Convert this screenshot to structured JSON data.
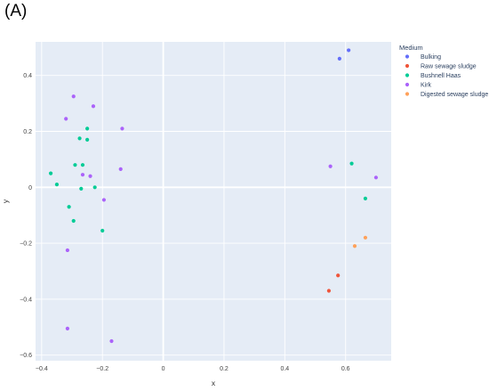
{
  "panel_label": "(A)",
  "colors": {
    "plot_bg": "#E5ECF6",
    "grid": "#ffffff",
    "Bulking": "#636EFA",
    "Raw sewage sludge": "#EF553B",
    "Bushnell Haas": "#00CC96",
    "Kirk": "#AB63FA",
    "Digested sewage sludge": "#FFA15A"
  },
  "chart_data": {
    "type": "scatter",
    "xlabel": "x",
    "ylabel": "y",
    "xlim": [
      -0.42,
      0.75
    ],
    "ylim": [
      -0.62,
      0.52
    ],
    "xticks": [
      -0.4,
      -0.2,
      0,
      0.2,
      0.4,
      0.6
    ],
    "yticks": [
      0.4,
      0.2,
      0,
      -0.2,
      -0.4,
      -0.6
    ],
    "grid": true,
    "legend_title": "Medium",
    "legend_position": "top-right outside",
    "series": [
      {
        "name": "Bulking",
        "points": [
          [
            0.61,
            0.49
          ],
          [
            0.58,
            0.46
          ]
        ]
      },
      {
        "name": "Raw sewage sludge",
        "points": [
          [
            0.575,
            -0.315
          ],
          [
            0.545,
            -0.37
          ]
        ]
      },
      {
        "name": "Bushnell Haas",
        "points": [
          [
            -0.25,
            0.21
          ],
          [
            -0.275,
            0.175
          ],
          [
            -0.25,
            0.17
          ],
          [
            -0.29,
            0.08
          ],
          [
            -0.265,
            0.08
          ],
          [
            -0.37,
            0.05
          ],
          [
            -0.35,
            0.01
          ],
          [
            -0.27,
            -0.005
          ],
          [
            -0.225,
            0.0
          ],
          [
            -0.31,
            -0.07
          ],
          [
            -0.295,
            -0.12
          ],
          [
            -0.2,
            -0.155
          ],
          [
            0.62,
            0.085
          ],
          [
            0.665,
            -0.04
          ]
        ]
      },
      {
        "name": "Kirk",
        "points": [
          [
            -0.295,
            0.325
          ],
          [
            -0.23,
            0.29
          ],
          [
            -0.32,
            0.245
          ],
          [
            -0.135,
            0.21
          ],
          [
            -0.14,
            0.065
          ],
          [
            -0.265,
            0.045
          ],
          [
            -0.24,
            0.04
          ],
          [
            -0.195,
            -0.045
          ],
          [
            -0.315,
            -0.225
          ],
          [
            -0.315,
            -0.505
          ],
          [
            -0.17,
            -0.55
          ],
          [
            0.55,
            0.075
          ],
          [
            0.7,
            0.035
          ]
        ]
      },
      {
        "name": "Digested sewage sludge",
        "points": [
          [
            0.665,
            -0.18
          ],
          [
            0.63,
            -0.21
          ]
        ]
      }
    ]
  }
}
